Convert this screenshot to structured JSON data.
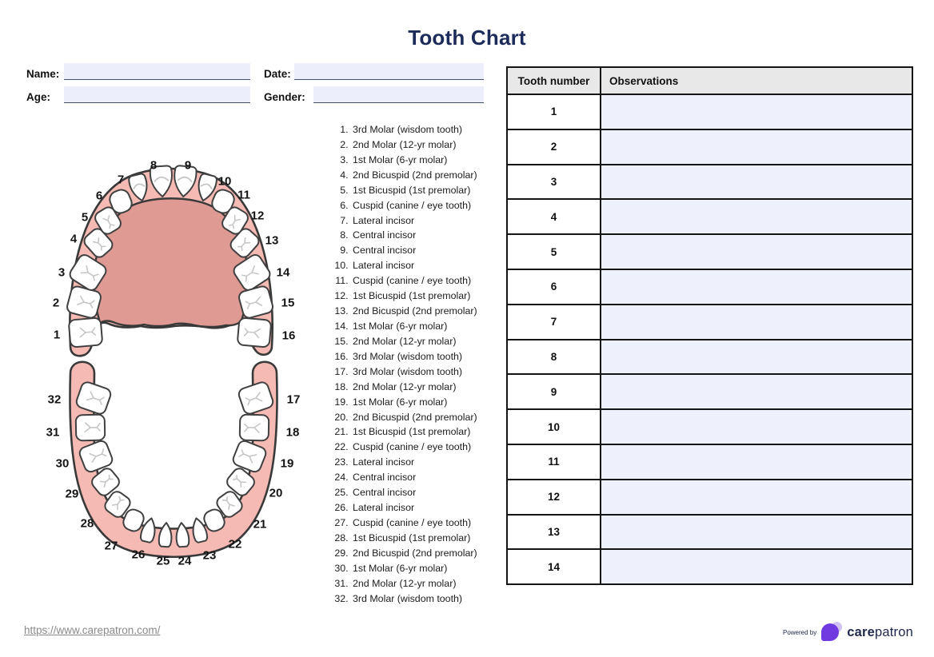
{
  "title": "Tooth Chart",
  "form": {
    "name_label": "Name:",
    "date_label": "Date:",
    "age_label": "Age:",
    "gender_label": "Gender:",
    "name_value": "",
    "date_value": "",
    "age_value": "",
    "gender_value": ""
  },
  "tooth_list": [
    "3rd Molar (wisdom tooth)",
    "2nd Molar (12-yr molar)",
    "1st Molar (6-yr molar)",
    "2nd Bicuspid (2nd premolar)",
    "1st Bicuspid (1st premolar)",
    "Cuspid (canine / eye tooth)",
    "Lateral incisor",
    "Central incisor",
    "Central incisor",
    "Lateral incisor",
    "Cuspid (canine / eye tooth)",
    "1st Bicuspid (1st premolar)",
    "2nd Bicuspid (2nd premolar)",
    "1st Molar (6-yr molar)",
    "2nd Molar (12-yr molar)",
    "3rd Molar (wisdom tooth)",
    "3rd Molar (wisdom tooth)",
    "2nd Molar (12-yr molar)",
    "1st Molar (6-yr molar)",
    "2nd Bicuspid (2nd premolar)",
    "1st Bicuspid (1st premolar)",
    "Cuspid (canine / eye tooth)",
    "Lateral incisor",
    "Central incisor",
    "Central incisor",
    "Lateral incisor",
    "Cuspid (canine / eye tooth)",
    "1st Bicuspid (1st premolar)",
    "2nd Bicuspid (2nd premolar)",
    "1st Molar (6-yr molar)",
    "2nd Molar (12-yr molar)",
    "3rd Molar (wisdom tooth)"
  ],
  "diagram": {
    "upper_labels": [
      "1",
      "2",
      "3",
      "4",
      "5",
      "6",
      "7",
      "8",
      "9",
      "10",
      "11",
      "12",
      "13",
      "14",
      "15",
      "16"
    ],
    "lower_labels": [
      "17",
      "18",
      "19",
      "20",
      "21",
      "22",
      "23",
      "24",
      "25",
      "26",
      "27",
      "28",
      "29",
      "30",
      "31",
      "32"
    ]
  },
  "table": {
    "headers": [
      "Tooth number",
      "Observations"
    ],
    "rows": [
      {
        "tooth_number": "1",
        "observation": ""
      },
      {
        "tooth_number": "2",
        "observation": ""
      },
      {
        "tooth_number": "3",
        "observation": ""
      },
      {
        "tooth_number": "4",
        "observation": ""
      },
      {
        "tooth_number": "5",
        "observation": ""
      },
      {
        "tooth_number": "6",
        "observation": ""
      },
      {
        "tooth_number": "7",
        "observation": ""
      },
      {
        "tooth_number": "8",
        "observation": ""
      },
      {
        "tooth_number": "9",
        "observation": ""
      },
      {
        "tooth_number": "10",
        "observation": ""
      },
      {
        "tooth_number": "11",
        "observation": ""
      },
      {
        "tooth_number": "12",
        "observation": ""
      },
      {
        "tooth_number": "13",
        "observation": ""
      },
      {
        "tooth_number": "14",
        "observation": ""
      }
    ]
  },
  "footer": {
    "url": "https://www.carepatron.com/",
    "powered_by": "Powered by",
    "brand_bold": "care",
    "brand_regular": "patron"
  },
  "colors": {
    "title_navy": "#1c2b5a",
    "gum_outer": "#f4bab3",
    "palate": "#e09a94",
    "outline": "#3a3a3a",
    "tooth_fill": "#ffffff",
    "tooth_stroke": "#404040",
    "crack_gray": "#c6c6c6",
    "field_bg": "#eceefb",
    "field_underline": "#444f68",
    "table_header_bg": "#e8e8e8",
    "observation_bg": "#eef1fb",
    "table_border": "#151515",
    "url_gray": "#8a8a8a",
    "brand_navy": "#20294c",
    "logo_purple": "#6f3be0",
    "logo_light_purple": "#ccbcf0"
  }
}
